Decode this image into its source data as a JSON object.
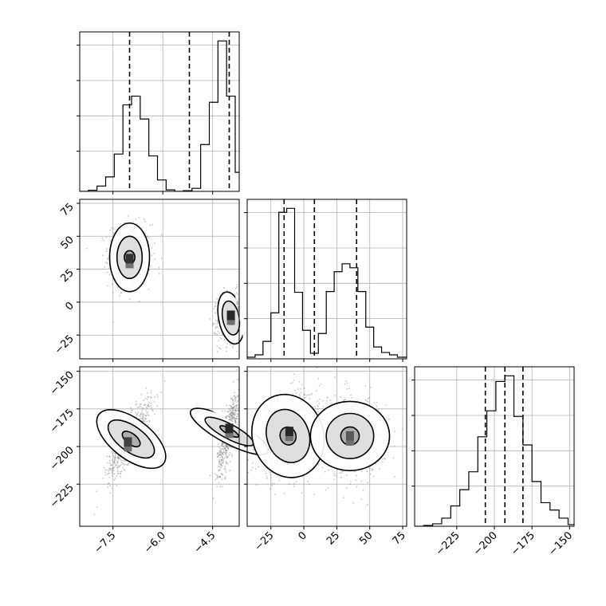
{
  "chart_data": {
    "type": "corner",
    "title": "",
    "parameters": [
      "",
      "",
      ""
    ],
    "grid": true,
    "colors": {
      "hist": "#000000",
      "quantile": "#000000",
      "samples": "#808080",
      "contour": "#000000",
      "grid": "#b0b0b0"
    },
    "ranges": [
      [
        -8.5,
        -3.7
      ],
      [
        -43,
        78
      ],
      [
        -253,
        -147
      ]
    ],
    "tick_labels": [
      [
        {
          "v": -7.5,
          "t": "−7.5"
        },
        {
          "v": -6.0,
          "t": "−6.0"
        },
        {
          "v": -4.5,
          "t": "−4.5"
        }
      ],
      [
        {
          "v": -25,
          "t": "−25"
        },
        {
          "v": 0,
          "t": "0"
        },
        {
          "v": 25,
          "t": "25"
        },
        {
          "v": 50,
          "t": "50"
        },
        {
          "v": 75,
          "t": "75"
        }
      ],
      [
        {
          "v": -225,
          "t": "−225"
        },
        {
          "v": -200,
          "t": "−200"
        },
        {
          "v": -175,
          "t": "−175"
        },
        {
          "v": -150,
          "t": "−150"
        }
      ]
    ],
    "quantiles": [
      [
        -7.0,
        -5.2,
        -4.0
      ],
      [
        -15,
        8,
        40
      ],
      [
        -206,
        -193,
        -181
      ]
    ],
    "histograms": [
      {
        "bins": [
          -8.5,
          -8.24,
          -7.98,
          -7.72,
          -7.46,
          -7.2,
          -6.94,
          -6.68,
          -6.42,
          -6.16,
          -5.9,
          -5.64,
          -5.38,
          -5.12,
          -4.86,
          -4.6,
          -4.34,
          -4.08,
          -3.82,
          -3.7
        ],
        "counts": [
          0,
          3,
          14,
          38,
          98,
          227,
          250,
          190,
          93,
          30,
          4,
          0,
          2,
          8,
          123,
          234,
          395,
          250,
          50
        ]
      },
      {
        "bins": [
          -43,
          -37,
          -31,
          -25,
          -19,
          -13,
          -7,
          -1,
          5,
          11,
          17,
          23,
          29,
          35,
          41,
          47,
          53,
          59,
          65,
          71,
          78
        ],
        "counts": [
          2,
          5,
          22,
          58,
          185,
          190,
          84,
          36,
          7,
          32,
          85,
          110,
          120,
          115,
          85,
          40,
          15,
          8,
          5,
          2
        ]
      },
      {
        "bins": [
          -253,
          -247,
          -241,
          -235,
          -229,
          -223,
          -217,
          -211,
          -205,
          -199,
          -193,
          -187,
          -181,
          -175,
          -169,
          -163,
          -157,
          -151,
          -147
        ],
        "counts": [
          0,
          1,
          3,
          10,
          25,
          45,
          67,
          110,
          142,
          178,
          185,
          135,
          100,
          55,
          29,
          20,
          10,
          2
        ]
      }
    ],
    "scatter_panels": [
      {
        "row": 1,
        "col": 0,
        "blobs": [
          {
            "mx": -7.0,
            "my": 35,
            "sx": 0.32,
            "sy": 12,
            "r": 0,
            "n": 600
          },
          {
            "mx": -3.95,
            "my": -12,
            "sx": 0.2,
            "sy": 10,
            "r": 0.1,
            "n": 600
          }
        ],
        "contours": [
          {
            "cx": -7.0,
            "cy": 34,
            "rx": [
              0.16,
              0.38,
              0.6
            ],
            "ry": [
              5,
              16,
              26
            ],
            "r": 0
          },
          {
            "cx": -3.95,
            "cy": -12,
            "rx": [
              0.1,
              0.25,
              0.37
            ],
            "ry": [
              5,
              13,
              20
            ],
            "r": 0.1
          }
        ],
        "peaks": [
          {
            "x": -7.0,
            "y": 33,
            "v": 0.9
          },
          {
            "x": -3.95,
            "y": -10,
            "v": 1.0
          }
        ]
      },
      {
        "row": 2,
        "col": 0,
        "blobs": [
          {
            "mx": -7.0,
            "my": -195,
            "sx": 0.33,
            "sy": 13,
            "r": 0.85,
            "n": 600
          },
          {
            "mx": -4.0,
            "my": -190,
            "sx": 0.18,
            "sy": 14,
            "r": 0.75,
            "n": 600
          }
        ],
        "contours": [
          {
            "cx": -6.95,
            "cy": -195,
            "rx": [
              0.16,
              0.38,
              0.6
            ],
            "ry": [
              7,
              18,
              27
            ],
            "r": 0.8
          },
          {
            "cx": -4.0,
            "cy": -190,
            "rx": [
              0.09,
              0.22,
              0.36
            ],
            "ry": [
              7,
              18,
              29
            ],
            "r": 0.7
          }
        ],
        "peaks": [
          {
            "x": -7.05,
            "y": -197,
            "v": 0.8
          },
          {
            "x": -4.0,
            "y": -188,
            "v": 1.0
          }
        ]
      },
      {
        "row": 2,
        "col": 1,
        "blobs": [
          {
            "mx": -12,
            "my": -193,
            "sx": 12,
            "sy": 14,
            "r": 0.3,
            "n": 650
          },
          {
            "mx": 35,
            "my": -193,
            "sx": 13,
            "sy": 13,
            "r": 0,
            "n": 650
          }
        ],
        "contours": [
          {
            "cx": -12,
            "cy": -193,
            "rx": [
              6,
              16,
              27
            ],
            "ry": [
              6,
              18,
              28
            ],
            "r": 0.3
          },
          {
            "cx": 35,
            "cy": -193,
            "rx": [
              7,
              18,
              30
            ],
            "ry": [
              6,
              15,
              23
            ],
            "r": 0
          }
        ],
        "peaks": [
          {
            "x": -11,
            "y": -190,
            "v": 1.0
          },
          {
            "x": 35,
            "y": -193,
            "v": 0.6
          }
        ]
      }
    ]
  }
}
